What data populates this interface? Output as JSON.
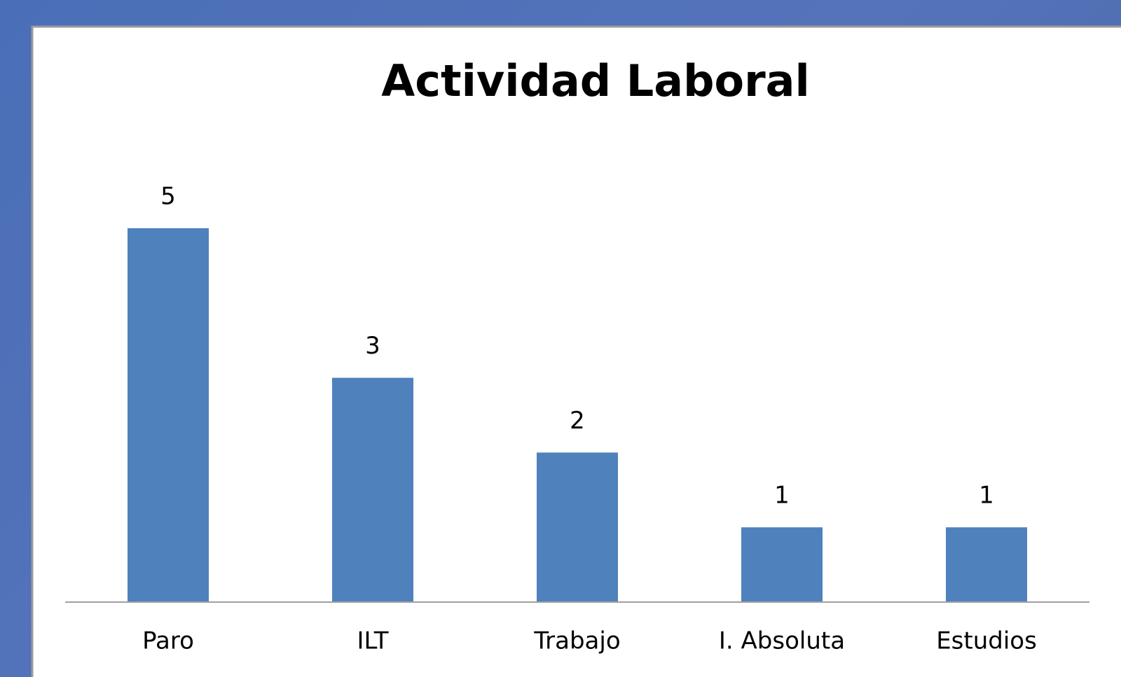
{
  "chart_data": {
    "type": "bar",
    "title": "Actividad Laboral",
    "categories": [
      "Paro",
      "ILT",
      "Trabajo",
      "I. Absoluta",
      "Estudios"
    ],
    "values": [
      5,
      3,
      2,
      1,
      1
    ],
    "color": "#4f81bd",
    "ylim": [
      0,
      5
    ],
    "grid": false
  }
}
